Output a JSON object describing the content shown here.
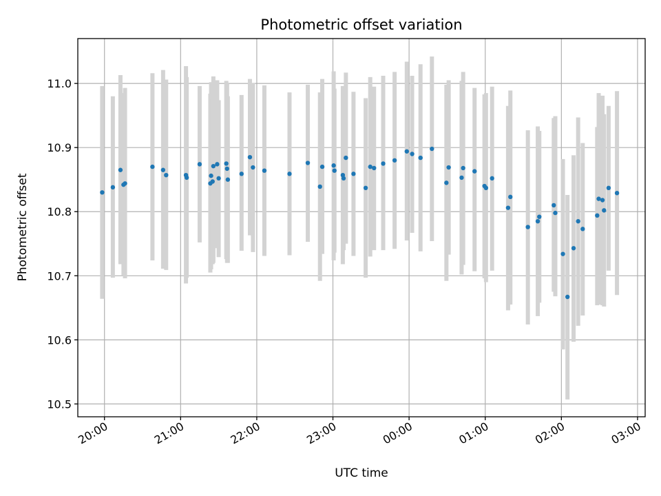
{
  "chart_data": {
    "type": "scatter",
    "title": "Photometric offset variation",
    "xlabel": "UTC time",
    "ylabel": "Photometric offset",
    "grid": true,
    "x_unit": "hours after 20:00 UTC",
    "xlim": [
      -0.35,
      7.1
    ],
    "ylim": [
      10.48,
      11.07
    ],
    "x_ticks": [
      {
        "value": 0,
        "label": "20:00"
      },
      {
        "value": 1,
        "label": "21:00"
      },
      {
        "value": 2,
        "label": "22:00"
      },
      {
        "value": 3,
        "label": "23:00"
      },
      {
        "value": 4,
        "label": "00:00"
      },
      {
        "value": 5,
        "label": "01:00"
      },
      {
        "value": 6,
        "label": "02:00"
      },
      {
        "value": 7,
        "label": "03:00"
      }
    ],
    "y_ticks": [
      {
        "value": 10.5,
        "label": "10.5"
      },
      {
        "value": 10.6,
        "label": "10.6"
      },
      {
        "value": 10.7,
        "label": "10.7"
      },
      {
        "value": 10.8,
        "label": "10.8"
      },
      {
        "value": 10.9,
        "label": "10.9"
      },
      {
        "value": 11.0,
        "label": "11.0"
      }
    ],
    "colors": {
      "point": "#1f77b4",
      "errorbar": "#d3d3d3",
      "grid": "#b0b0b0"
    },
    "series": [
      {
        "name": "offset",
        "x": [
          -0.03,
          0.11,
          0.21,
          0.25,
          0.27,
          0.63,
          0.77,
          0.81,
          1.07,
          1.08,
          1.25,
          1.39,
          1.4,
          1.42,
          1.43,
          1.48,
          1.5,
          1.6,
          1.61,
          1.62,
          1.8,
          1.91,
          1.95,
          2.1,
          2.43,
          2.67,
          2.83,
          2.86,
          3.01,
          3.02,
          3.13,
          3.14,
          3.17,
          3.27,
          3.43,
          3.49,
          3.54,
          3.66,
          3.81,
          3.97,
          4.04,
          4.15,
          4.3,
          4.49,
          4.52,
          4.69,
          4.71,
          4.86,
          4.99,
          5.01,
          5.09,
          5.3,
          5.33,
          5.56,
          5.69,
          5.71,
          5.9,
          5.92,
          6.02,
          6.08,
          6.16,
          6.22,
          6.28,
          6.47,
          6.49,
          6.54,
          6.56,
          6.62,
          6.73
        ],
        "y": [
          10.83,
          10.838,
          10.865,
          10.842,
          10.844,
          10.87,
          10.865,
          10.857,
          10.857,
          10.853,
          10.874,
          10.844,
          10.856,
          10.847,
          10.871,
          10.874,
          10.852,
          10.875,
          10.867,
          10.85,
          10.859,
          10.885,
          10.869,
          10.864,
          10.859,
          10.876,
          10.839,
          10.87,
          10.872,
          10.864,
          10.857,
          10.852,
          10.884,
          10.859,
          10.837,
          10.87,
          10.868,
          10.875,
          10.88,
          10.894,
          10.89,
          10.884,
          10.898,
          10.845,
          10.869,
          10.853,
          10.868,
          10.863,
          10.84,
          10.837,
          10.852,
          10.806,
          10.823,
          10.776,
          10.785,
          10.792,
          10.81,
          10.798,
          10.734,
          10.667,
          10.743,
          10.785,
          10.773,
          10.794,
          10.82,
          10.818,
          10.802,
          10.837,
          10.829
        ],
        "err_low": [
          10.664,
          10.697,
          10.718,
          10.7,
          10.696,
          10.724,
          10.711,
          10.709,
          10.688,
          10.697,
          10.752,
          10.705,
          10.71,
          10.718,
          10.72,
          10.743,
          10.729,
          10.726,
          10.72,
          10.72,
          10.739,
          10.763,
          10.737,
          10.731,
          10.732,
          10.753,
          10.692,
          10.734,
          10.724,
          10.736,
          10.718,
          10.74,
          10.75,
          10.731,
          10.697,
          10.73,
          10.74,
          10.74,
          10.742,
          10.755,
          10.767,
          10.738,
          10.754,
          10.692,
          10.733,
          10.702,
          10.717,
          10.707,
          10.696,
          10.69,
          10.708,
          10.646,
          10.655,
          10.624,
          10.637,
          10.658,
          10.675,
          10.668,
          10.585,
          10.507,
          10.597,
          10.622,
          10.638,
          10.654,
          10.655,
          10.654,
          10.652,
          10.708,
          10.67
        ],
        "err_high": [
          10.996,
          10.98,
          11.013,
          10.985,
          10.993,
          11.016,
          11.021,
          11.006,
          11.027,
          11.01,
          10.996,
          10.984,
          11.002,
          10.977,
          11.011,
          11.005,
          10.974,
          11.004,
          11.0,
          10.98,
          10.982,
          11.007,
          11.001,
          10.997,
          10.986,
          10.998,
          10.986,
          11.007,
          11.019,
          10.992,
          10.996,
          10.964,
          11.017,
          10.987,
          10.977,
          11.01,
          10.995,
          11.012,
          11.018,
          11.034,
          11.012,
          11.03,
          11.042,
          10.998,
          11.005,
          11.004,
          11.018,
          10.993,
          10.983,
          10.985,
          10.995,
          10.965,
          10.989,
          10.927,
          10.933,
          10.926,
          10.946,
          10.949,
          10.882,
          10.826,
          10.888,
          10.947,
          10.907,
          10.932,
          10.985,
          10.981,
          10.952,
          10.965,
          10.988
        ]
      }
    ]
  }
}
